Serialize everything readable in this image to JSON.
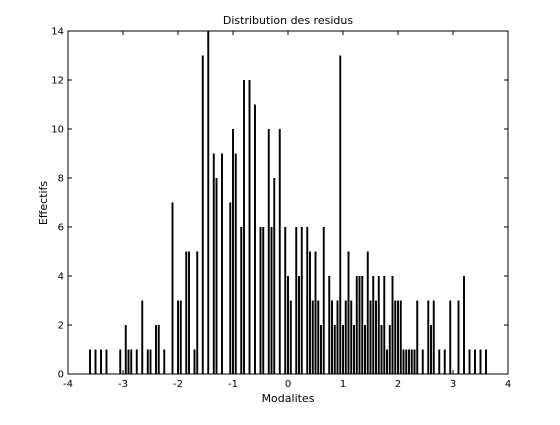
{
  "chart_data": {
    "type": "bar",
    "title": "Distribution des residus",
    "xlabel": "Modalites",
    "ylabel": "Effectifs",
    "xlim": [
      -4,
      4
    ],
    "ylim": [
      0,
      14
    ],
    "xticks": [
      -4,
      -3,
      -2,
      -1,
      0,
      1,
      2,
      3,
      4
    ],
    "yticks": [
      0,
      2,
      4,
      6,
      8,
      10,
      12,
      14
    ],
    "grid": false,
    "bar_color": "#000000",
    "x": [
      -3.6,
      -3.5,
      -3.4,
      -3.3,
      -3.05,
      -2.95,
      -2.9,
      -2.85,
      -2.75,
      -2.65,
      -2.55,
      -2.5,
      -2.4,
      -2.35,
      -2.25,
      -2.1,
      -2.0,
      -1.95,
      -1.85,
      -1.8,
      -1.7,
      -1.65,
      -1.55,
      -1.45,
      -1.35,
      -1.3,
      -1.2,
      -1.05,
      -1.0,
      -0.95,
      -0.85,
      -0.8,
      -0.7,
      -0.6,
      -0.5,
      -0.45,
      -0.35,
      -0.3,
      -0.25,
      -0.15,
      -0.05,
      0.0,
      0.05,
      0.15,
      0.2,
      0.25,
      0.35,
      0.4,
      0.45,
      0.5,
      0.55,
      0.6,
      0.65,
      0.75,
      0.8,
      0.85,
      0.9,
      0.95,
      1.0,
      1.05,
      1.1,
      1.15,
      1.2,
      1.25,
      1.3,
      1.35,
      1.4,
      1.45,
      1.5,
      1.55,
      1.6,
      1.65,
      1.7,
      1.75,
      1.8,
      1.85,
      1.9,
      1.95,
      2.0,
      2.05,
      2.1,
      2.15,
      2.2,
      2.25,
      2.3,
      2.35,
      2.45,
      2.55,
      2.6,
      2.65,
      2.75,
      2.85,
      2.95,
      3.1,
      3.2,
      3.3,
      3.4,
      3.5,
      3.6
    ],
    "values": [
      1,
      1,
      1,
      1,
      1,
      2,
      1,
      1,
      1,
      3,
      1,
      1,
      2,
      2,
      1,
      7,
      3,
      3,
      5,
      5,
      1,
      5,
      13,
      14,
      9,
      8,
      9,
      7,
      10,
      9,
      6,
      12,
      12,
      11,
      6,
      6,
      10,
      6,
      8,
      10,
      6,
      4,
      3,
      6,
      4,
      6,
      6,
      5,
      3,
      5,
      3,
      2,
      6,
      4,
      3,
      2,
      3,
      13,
      2,
      3,
      5,
      3,
      2,
      4,
      4,
      4,
      2,
      5,
      3,
      4,
      3,
      4,
      2,
      4,
      1,
      2,
      4,
      3,
      3,
      3,
      1,
      1,
      1,
      1,
      1,
      3,
      1,
      3,
      2,
      3,
      1,
      1,
      3,
      3,
      4,
      1,
      1,
      1,
      1
    ],
    "bar_width": 0.035
  }
}
